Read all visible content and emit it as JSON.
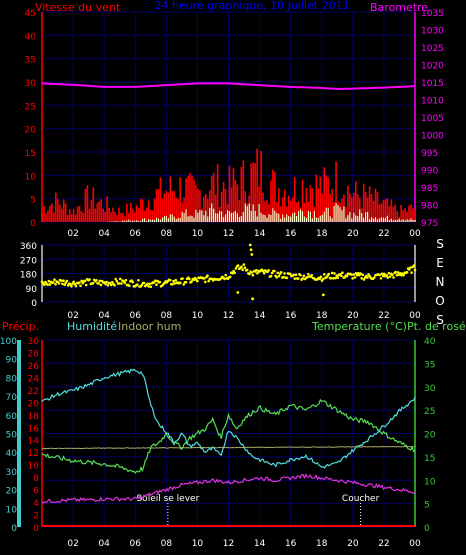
{
  "chart_data": [
    {
      "type": "line",
      "panel": "wind-barometer",
      "title": "24 heure graphique, 10 Juillet 2011",
      "ylabel_left": "Vitesse du vent",
      "ylabel_right": "Barometre",
      "ylim_left": [
        0,
        45
      ],
      "ylim_right": [
        975,
        1035
      ],
      "y_ticks_left": [
        "0",
        "5",
        "10",
        "15",
        "20",
        "25",
        "30",
        "35",
        "40",
        "45"
      ],
      "y_ticks_right": [
        "975",
        "980",
        "985",
        "990",
        "995",
        "1000",
        "1005",
        "1010",
        "1015",
        "1020",
        "1025",
        "1030",
        "1035"
      ],
      "x_ticks": [
        "02",
        "04",
        "06",
        "08",
        "10",
        "12",
        "14",
        "16",
        "18",
        "20",
        "22",
        "00"
      ],
      "x_hours": [
        2,
        4,
        6,
        8,
        10,
        12,
        14,
        16,
        18,
        20,
        22,
        24
      ],
      "grid": true,
      "colors": {
        "wind_gust": "#ff0000",
        "wind_avg": "#ffffcc",
        "pressure": "#ff00ff",
        "axis_left": "#ff0000",
        "axis_right": "#ff00ff",
        "title": "#0000ff",
        "grid": "#000066"
      },
      "series": [
        {
          "key": "pressure",
          "name": "Barometre",
          "axis": "right",
          "x": [
            0,
            2,
            4,
            6,
            8,
            10,
            12,
            14,
            16,
            18,
            19,
            20,
            22,
            24
          ],
          "values": [
            1014.6,
            1014.2,
            1013.6,
            1013.6,
            1014.1,
            1014.6,
            1014.6,
            1014.1,
            1013.6,
            1013.3,
            1013.0,
            1013.1,
            1013.4,
            1013.8
          ]
        },
        {
          "key": "wind_gust",
          "name": "",
          "axis": "left",
          "x": [
            0,
            1,
            2,
            3,
            4,
            5,
            6,
            7,
            8,
            9,
            10,
            11,
            12,
            13,
            14,
            15,
            16,
            17,
            18,
            19,
            20,
            21,
            22,
            23,
            24
          ],
          "values": [
            4,
            6,
            3,
            7,
            5,
            3,
            4,
            7,
            9,
            10,
            8,
            11,
            10,
            12,
            15,
            10,
            9,
            11,
            10,
            12,
            8,
            7,
            5,
            3,
            4
          ]
        },
        {
          "key": "wind_avg",
          "name": "",
          "axis": "left",
          "x": [
            0,
            2,
            4,
            6,
            8,
            9,
            10,
            11,
            12,
            13,
            14,
            15,
            16,
            17,
            18,
            19,
            20,
            21,
            22,
            23,
            24
          ],
          "values": [
            0,
            0,
            0,
            0.5,
            1,
            2,
            2,
            3,
            2,
            3,
            3,
            2,
            2,
            3,
            2,
            3,
            2,
            2,
            1,
            1,
            0.5
          ]
        }
      ]
    },
    {
      "type": "scatter",
      "panel": "wind-direction",
      "ylim": [
        0,
        360
      ],
      "y_ticks": [
        "0",
        "90",
        "180",
        "270",
        "360"
      ],
      "y_ticks_right": [
        "S",
        "E",
        "N",
        "O",
        "S"
      ],
      "x_ticks": [
        "02",
        "04",
        "06",
        "08",
        "10",
        "12",
        "14",
        "16",
        "18",
        "20",
        "22",
        "00"
      ],
      "colors": {
        "points": "#ffff00",
        "axis": "#ffffff",
        "grid": "#000066"
      },
      "series": [
        {
          "key": "direction",
          "name": "",
          "x": [
            0,
            1,
            2,
            3,
            4,
            5,
            6,
            7,
            8,
            9,
            10,
            11,
            12,
            12.5,
            13,
            13.5,
            14,
            15,
            16,
            17,
            18,
            19,
            20,
            21,
            22,
            23,
            23.5,
            24
          ],
          "values": [
            112,
            130,
            118,
            125,
            120,
            128,
            118,
            115,
            120,
            130,
            140,
            150,
            165,
            210,
            220,
            180,
            190,
            175,
            165,
            160,
            155,
            170,
            165,
            160,
            165,
            175,
            190,
            215
          ]
        },
        {
          "key": "outliers",
          "name": "",
          "x": [
            13.4,
            13.45,
            13.5,
            13.55,
            12.6,
            18.1
          ],
          "values": [
            360,
            330,
            300,
            20,
            60,
            45
          ]
        }
      ]
    },
    {
      "type": "line",
      "panel": "temperature-humidity",
      "labels": {
        "precip": "Précip.",
        "humidity": "Humidité",
        "indoor": "Indoor hum",
        "temperature": "Temperature (°C)",
        "dewpoint": "Pt. de rosée"
      },
      "ylim_precip": [
        0,
        30
      ],
      "ylim_humidity": [
        0,
        100
      ],
      "ylim_temperature": [
        0,
        40
      ],
      "y_ticks_precip": [
        "0",
        "2",
        "4",
        "6",
        "8",
        "10",
        "12",
        "14",
        "16",
        "18",
        "20",
        "22",
        "24",
        "26",
        "28",
        "30"
      ],
      "y_ticks_humidity": [
        "0",
        "10",
        "20",
        "30",
        "40",
        "50",
        "60",
        "70",
        "80",
        "90",
        "100"
      ],
      "y_ticks_temperature": [
        "0",
        "5",
        "10",
        "15",
        "20",
        "25",
        "30",
        "35",
        "40"
      ],
      "x_ticks": [
        "02",
        "04",
        "06",
        "08",
        "10",
        "12",
        "14",
        "16",
        "18",
        "20",
        "22",
        "00"
      ],
      "annotations": [
        {
          "text": "Soleil se lever",
          "x": 8.1
        },
        {
          "text": "Coucher",
          "x": 20.5
        }
      ],
      "colors": {
        "humidity": "#55dddd",
        "temperature": "#55dd55",
        "dewpoint": "#dd33dd",
        "indoor": "#aaaa66",
        "precip": "#ff0000",
        "axis_precip": "#ff0000",
        "axis_humidity": "#44cccc",
        "axis_temperature": "#33cc33",
        "grid": "#000066"
      },
      "series": [
        {
          "key": "humidity",
          "name": "Humidité",
          "axis": "humidity",
          "x": [
            0,
            1,
            2,
            3,
            4,
            5,
            6,
            6.5,
            7,
            7.5,
            8,
            8.5,
            9,
            9.5,
            10,
            10.5,
            11,
            11.5,
            12,
            12.5,
            13,
            13.5,
            14,
            15,
            16,
            17,
            18,
            19,
            20,
            21,
            22,
            23,
            24
          ],
          "values": [
            67,
            71,
            73,
            76,
            80,
            82,
            84,
            82,
            65,
            55,
            51,
            45,
            50,
            43,
            45,
            40,
            42,
            38,
            52,
            48,
            43,
            38,
            36,
            33,
            36,
            38,
            32,
            34,
            41,
            47,
            54,
            62,
            69
          ]
        },
        {
          "key": "temperature",
          "name": "Temperature (°C)",
          "axis": "temperature",
          "x": [
            0,
            1,
            2,
            3,
            4,
            5,
            6,
            6.5,
            7,
            7.5,
            8,
            8.5,
            9,
            9.5,
            10,
            10.5,
            11,
            11.5,
            12,
            12.5,
            13,
            13.5,
            14,
            15,
            16,
            17,
            18,
            19,
            20,
            21,
            22,
            23,
            24
          ],
          "values": [
            15.5,
            14.8,
            14.2,
            13.8,
            13.5,
            12.8,
            11.8,
            12.5,
            17,
            18,
            20,
            18,
            17,
            19,
            20,
            21,
            23,
            19,
            24,
            21,
            23,
            24.5,
            25.5,
            24,
            26,
            25,
            27,
            25,
            23,
            22.5,
            20,
            18,
            16.5
          ]
        },
        {
          "key": "dewpoint",
          "name": "Pt. de rosée",
          "axis": "temperature",
          "x": [
            0,
            1,
            2,
            3,
            4,
            5,
            6,
            7,
            8,
            9,
            10,
            11,
            12,
            13,
            14,
            15,
            16,
            17,
            18,
            19,
            20,
            21,
            22,
            23,
            24
          ],
          "values": [
            5.5,
            5.6,
            5.8,
            5.8,
            6,
            6,
            6,
            7,
            8,
            9,
            9.5,
            10,
            9.5,
            10,
            10.5,
            10,
            10.5,
            11,
            10.5,
            10,
            9.5,
            9,
            8.5,
            8,
            7.5
          ]
        },
        {
          "key": "indoor",
          "name": "Indoor hum",
          "axis": "humidity",
          "x": [
            0,
            24
          ],
          "values": [
            42,
            43
          ]
        },
        {
          "key": "precip",
          "name": "Précip.",
          "axis": "precip",
          "x": [
            0,
            24
          ],
          "values": [
            0,
            0
          ]
        }
      ]
    }
  ]
}
